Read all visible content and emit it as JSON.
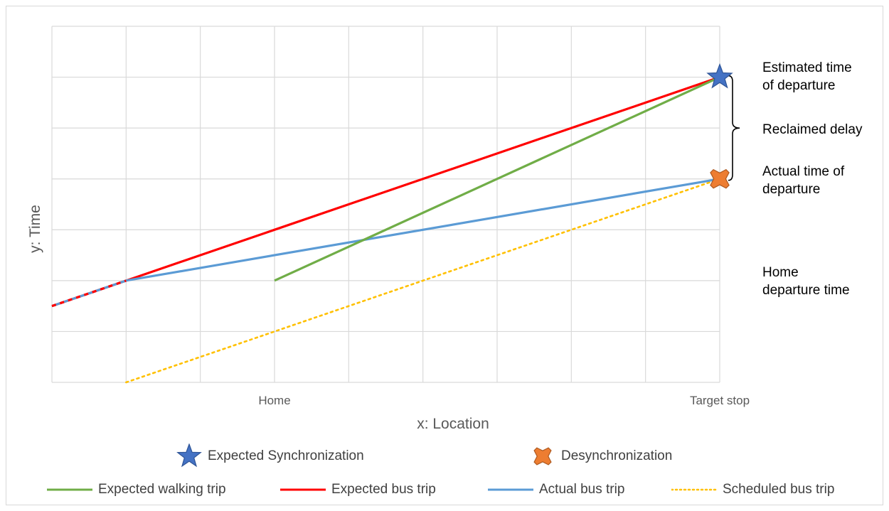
{
  "chart_data": {
    "type": "line",
    "xlabel": "x: Location",
    "ylabel": "y: Time",
    "x_ticks": [
      {
        "x": 3,
        "label": "Home"
      },
      {
        "x": 9,
        "label": "Target stop"
      }
    ],
    "xlim": [
      0,
      9
    ],
    "ylim": [
      0,
      7
    ],
    "grid": true,
    "legend_position": "bottom",
    "series": [
      {
        "name": "Expected walking trip",
        "color": "#70ad47",
        "style": "solid",
        "points": [
          [
            3,
            2
          ],
          [
            9,
            6
          ]
        ]
      },
      {
        "name": "Expected bus trip",
        "color": "#ff0000",
        "style": "solid",
        "points": [
          [
            0,
            1.5
          ],
          [
            1,
            2
          ],
          [
            9,
            6
          ]
        ]
      },
      {
        "name": "Actual bus trip",
        "color": "#5b9bd5",
        "style": "solid",
        "points": [
          [
            0,
            1.5
          ],
          [
            1,
            2
          ],
          [
            9,
            4
          ]
        ]
      },
      {
        "name": "Scheduled bus trip",
        "color": "#ffc000",
        "style": "dotted",
        "points": [
          [
            1,
            0
          ],
          [
            9,
            4
          ]
        ]
      }
    ],
    "markers": [
      {
        "name": "Expected Synchronization",
        "shape": "star",
        "color": "#4472c4",
        "x": 9,
        "y": 6
      },
      {
        "name": "Desynchronization",
        "shape": "x",
        "color": "#ed7d31",
        "x": 9,
        "y": 4
      }
    ],
    "annotations": [
      {
        "id": "etd",
        "text": "Estimated time\nof departure"
      },
      {
        "id": "reclaimed",
        "text": "Reclaimed delay"
      },
      {
        "id": "atd",
        "text": "Actual time of\ndeparture"
      },
      {
        "id": "home",
        "text": "Home\ndeparture time"
      }
    ]
  }
}
